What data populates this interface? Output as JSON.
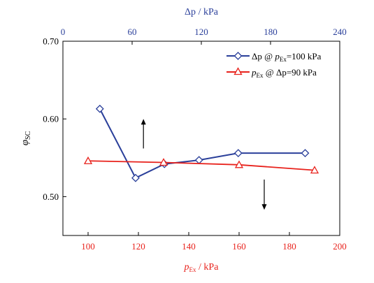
{
  "chart_data": {
    "type": "line",
    "colors": {
      "series_dp": "#2a3f9a",
      "series_pex": "#e8221c",
      "top_axis": "#2a3f9a",
      "bottom_axis": "#e8221c",
      "left_axis": "#000000",
      "arrows": "#000000"
    },
    "y_axis": {
      "label": "φ",
      "label_sub": "SC",
      "range": [
        0.45,
        0.7
      ],
      "ticks": [
        0.5,
        0.6,
        0.7
      ],
      "tick_labels": [
        "0.50",
        "0.60",
        "0.70"
      ]
    },
    "bottom_axis": {
      "label": "p",
      "label_sub": "Ex",
      "label_unit": " / kPa",
      "range": [
        90,
        200
      ],
      "ticks": [
        100,
        120,
        140,
        160,
        180,
        200
      ],
      "tick_labels": [
        "100",
        "120",
        "140",
        "160",
        "180",
        "200"
      ]
    },
    "top_axis": {
      "label": "Δp",
      "label_unit": " / kPa",
      "range": [
        0,
        240
      ],
      "ticks": [
        0,
        60,
        120,
        180,
        240
      ],
      "tick_labels": [
        "0",
        "60",
        "120",
        "180",
        "240"
      ]
    },
    "series": [
      {
        "name_parts": [
          "Δp @ ",
          "p",
          "Ex",
          "=100 kPa"
        ],
        "x_axis": "top",
        "marker": "diamond",
        "x": [
          32,
          63,
          88,
          118,
          152,
          210
        ],
        "y": [
          0.613,
          0.524,
          0.542,
          0.547,
          0.556,
          0.556
        ]
      },
      {
        "name_parts": [
          "p",
          "Ex",
          " @ Δp",
          "=90 kPa"
        ],
        "x_axis": "bottom",
        "marker": "triangle",
        "x": [
          100,
          130,
          160,
          190
        ],
        "y": [
          0.546,
          0.544,
          0.541,
          0.534
        ]
      }
    ],
    "annotations": [
      {
        "type": "arrow",
        "direction": "up",
        "x_bottom": 122,
        "y_from": 0.562,
        "y_to": 0.6
      },
      {
        "type": "arrow",
        "direction": "down",
        "x_bottom": 170,
        "y_from": 0.522,
        "y_to": 0.483
      }
    ],
    "legend_position": "top-right",
    "grid": false
  }
}
